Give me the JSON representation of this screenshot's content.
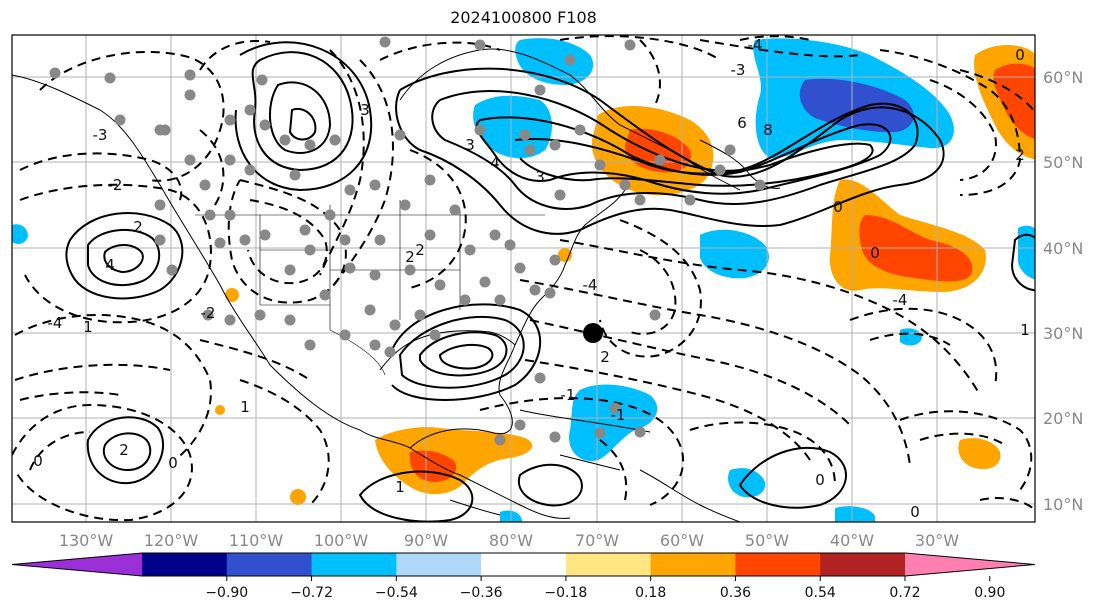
{
  "title": "2024100800 F108",
  "lon_labels": [
    "130°W",
    "120°W",
    "110°W",
    "100°W",
    "90°W",
    "80°W",
    "70°W",
    "60°W",
    "50°W",
    "40°W",
    "30°W"
  ],
  "lat_labels": [
    "60°N",
    "50°N",
    "40°N",
    "30°N",
    "20°N",
    "10°N"
  ],
  "colorbar": {
    "ticks": [
      "−0.90",
      "−0.72",
      "−0.54",
      "−0.36",
      "−0.18",
      "0.18",
      "0.36",
      "0.54",
      "0.72",
      "0.90"
    ],
    "colors": [
      "#9b30d9",
      "#00008b",
      "#3050d0",
      "#00bfff",
      "#add8f7",
      "#ffffff",
      "#ffe680",
      "#ffa500",
      "#ff4500",
      "#b22222",
      "#ff80b0"
    ]
  },
  "contour_labels": [
    "-4",
    "-3",
    "-2",
    "-1",
    "0",
    "1",
    "2",
    "3",
    "4",
    "6",
    "8"
  ],
  "palette": {
    "pos_light": "#ffe680",
    "pos_mid": "#ffa500",
    "pos_high": "#ff4500",
    "neg_light": "#add8f7",
    "neg_mid": "#00bfff",
    "neg_high": "#3050d0",
    "station": "#888888",
    "grid": "#b0b0b0",
    "coast": "#000000"
  }
}
